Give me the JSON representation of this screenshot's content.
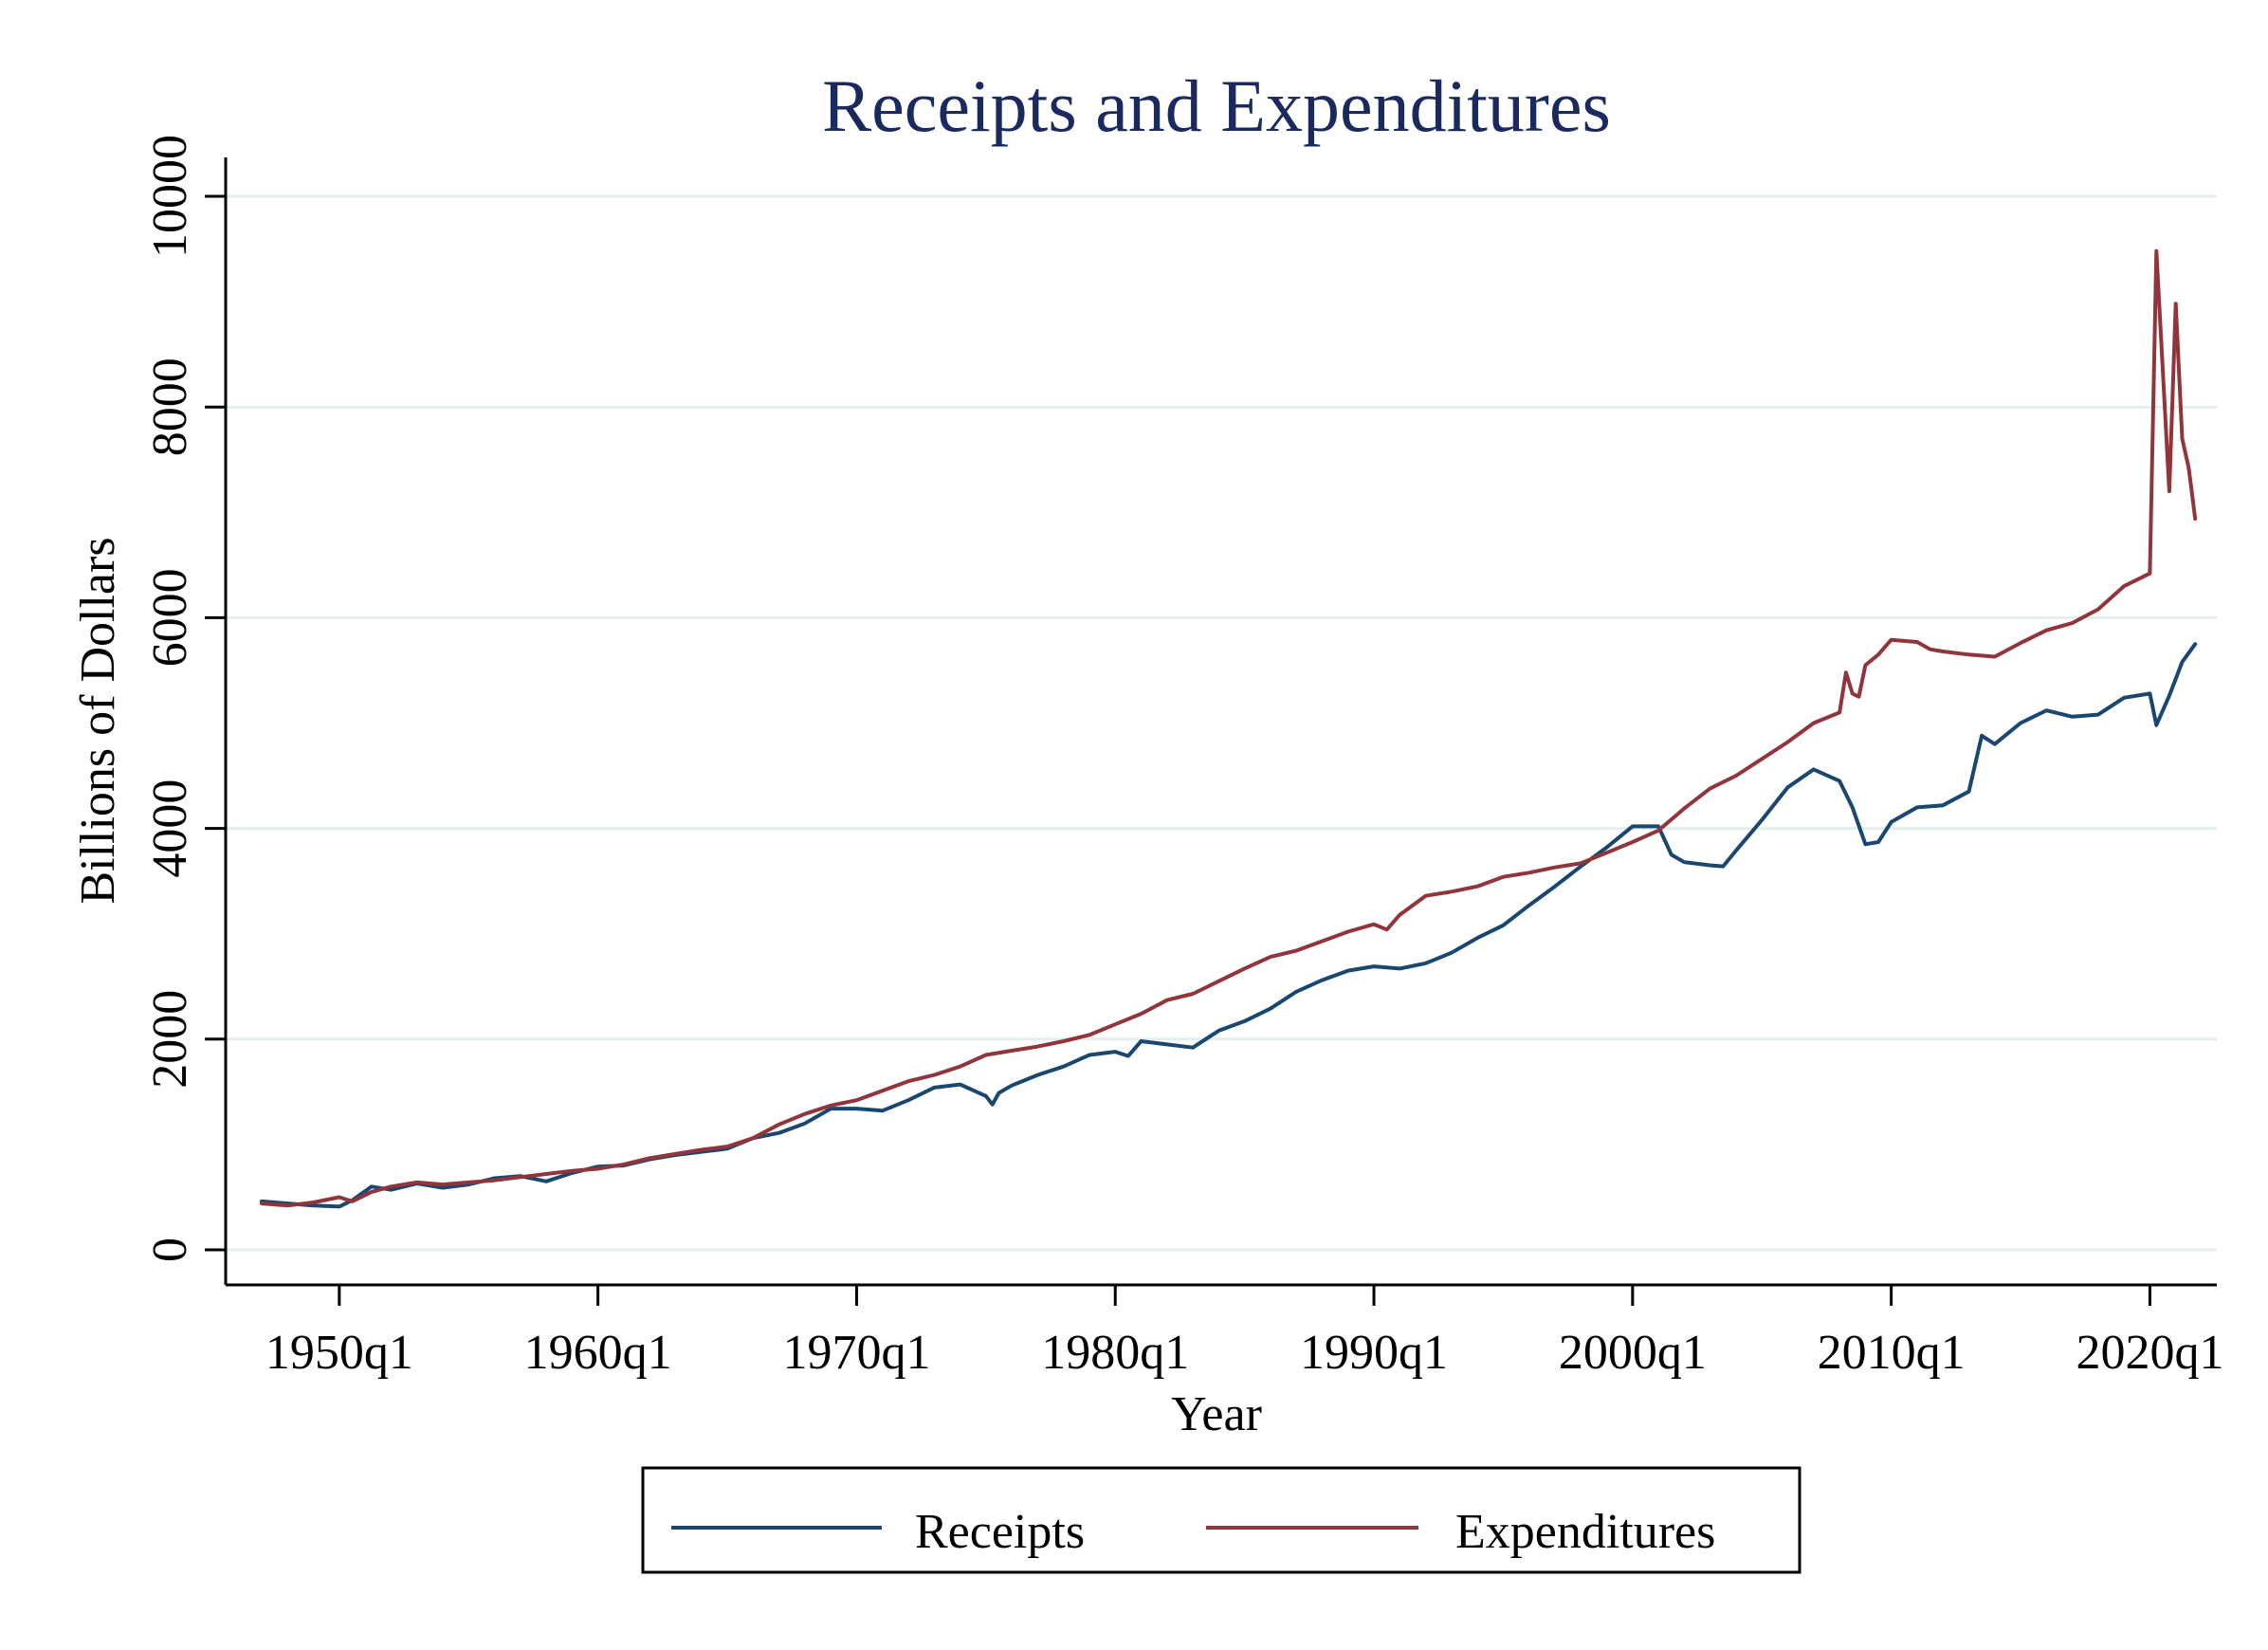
{
  "chart_data": {
    "type": "line",
    "title": "Receipts and Expenditures",
    "xlabel": "Year",
    "ylabel": "Billions of Dollars",
    "x_start_quarter": "1947q1",
    "x_ticks": [
      "1950q1",
      "1960q1",
      "1970q1",
      "1980q1",
      "1990q1",
      "2000q1",
      "2010q1",
      "2020q1"
    ],
    "y_ticks": [
      0,
      2000,
      4000,
      6000,
      8000,
      10000
    ],
    "ylim": [
      0,
      10000
    ],
    "grid": "horizontal",
    "legend": "bottom",
    "series": [
      {
        "name": "Receipts",
        "color": "#1a476f",
        "points": [
          [
            "1947q1",
            460
          ],
          [
            "1948q1",
            440
          ],
          [
            "1949q1",
            420
          ],
          [
            "1950q1",
            410
          ],
          [
            "1950q3",
            470
          ],
          [
            "1951q2",
            600
          ],
          [
            "1952q1",
            570
          ],
          [
            "1953q1",
            630
          ],
          [
            "1954q1",
            590
          ],
          [
            "1955q1",
            620
          ],
          [
            "1956q1",
            680
          ],
          [
            "1957q1",
            700
          ],
          [
            "1958q1",
            650
          ],
          [
            "1959q1",
            730
          ],
          [
            "1960q1",
            790
          ],
          [
            "1961q1",
            800
          ],
          [
            "1962q1",
            860
          ],
          [
            "1963q1",
            900
          ],
          [
            "1964q1",
            930
          ],
          [
            "1965q1",
            960
          ],
          [
            "1966q1",
            1060
          ],
          [
            "1967q1",
            1110
          ],
          [
            "1968q1",
            1200
          ],
          [
            "1969q1",
            1340
          ],
          [
            "1970q1",
            1340
          ],
          [
            "1971q1",
            1320
          ],
          [
            "1972q1",
            1420
          ],
          [
            "1973q1",
            1540
          ],
          [
            "1974q1",
            1570
          ],
          [
            "1975q1",
            1460
          ],
          [
            "1975q2",
            1380
          ],
          [
            "1975q3",
            1490
          ],
          [
            "1976q1",
            1560
          ],
          [
            "1977q1",
            1660
          ],
          [
            "1978q1",
            1740
          ],
          [
            "1979q1",
            1850
          ],
          [
            "1980q1",
            1880
          ],
          [
            "1980q3",
            1840
          ],
          [
            "1981q1",
            1980
          ],
          [
            "1982q1",
            1950
          ],
          [
            "1983q1",
            1920
          ],
          [
            "1984q1",
            2080
          ],
          [
            "1985q1",
            2170
          ],
          [
            "1986q1",
            2290
          ],
          [
            "1987q1",
            2450
          ],
          [
            "1988q1",
            2560
          ],
          [
            "1989q1",
            2650
          ],
          [
            "1990q1",
            2690
          ],
          [
            "1991q1",
            2670
          ],
          [
            "1992q1",
            2720
          ],
          [
            "1993q1",
            2820
          ],
          [
            "1994q1",
            2960
          ],
          [
            "1995q1",
            3080
          ],
          [
            "1996q1",
            3270
          ],
          [
            "1997q1",
            3450
          ],
          [
            "1998q1",
            3640
          ],
          [
            "1999q1",
            3820
          ],
          [
            "2000q1",
            4020
          ],
          [
            "2001q1",
            4020
          ],
          [
            "2001q3",
            3750
          ],
          [
            "2002q1",
            3680
          ],
          [
            "2003q1",
            3650
          ],
          [
            "2003q3",
            3640
          ],
          [
            "2004q1",
            3790
          ],
          [
            "2005q1",
            4080
          ],
          [
            "2006q1",
            4390
          ],
          [
            "2007q1",
            4560
          ],
          [
            "2008q1",
            4450
          ],
          [
            "2008q3",
            4200
          ],
          [
            "2009q1",
            3850
          ],
          [
            "2009q3",
            3870
          ],
          [
            "2010q1",
            4060
          ],
          [
            "2011q1",
            4200
          ],
          [
            "2012q1",
            4220
          ],
          [
            "2013q1",
            4350
          ],
          [
            "2013q3",
            4880
          ],
          [
            "2014q1",
            4800
          ],
          [
            "2015q1",
            5000
          ],
          [
            "2016q1",
            5120
          ],
          [
            "2017q1",
            5060
          ],
          [
            "2018q1",
            5080
          ],
          [
            "2019q1",
            5240
          ],
          [
            "2020q1",
            5280
          ],
          [
            "2020q2",
            4980
          ],
          [
            "2020q4",
            5260
          ],
          [
            "2021q2",
            5580
          ],
          [
            "2021q4",
            5750
          ]
        ]
      },
      {
        "name": "Expenditures",
        "color": "#90353b",
        "points": [
          [
            "1947q1",
            440
          ],
          [
            "1948q1",
            420
          ],
          [
            "1949q1",
            450
          ],
          [
            "1950q1",
            500
          ],
          [
            "1950q3",
            460
          ],
          [
            "1951q2",
            550
          ],
          [
            "1952q1",
            600
          ],
          [
            "1953q1",
            640
          ],
          [
            "1954q1",
            620
          ],
          [
            "1955q1",
            640
          ],
          [
            "1956q1",
            660
          ],
          [
            "1957q1",
            690
          ],
          [
            "1958q1",
            720
          ],
          [
            "1959q1",
            750
          ],
          [
            "1960q1",
            770
          ],
          [
            "1961q1",
            810
          ],
          [
            "1962q1",
            870
          ],
          [
            "1963q1",
            910
          ],
          [
            "1964q1",
            950
          ],
          [
            "1965q1",
            980
          ],
          [
            "1966q1",
            1060
          ],
          [
            "1967q1",
            1190
          ],
          [
            "1968q1",
            1290
          ],
          [
            "1969q1",
            1370
          ],
          [
            "1970q1",
            1420
          ],
          [
            "1971q1",
            1510
          ],
          [
            "1972q1",
            1600
          ],
          [
            "1973q1",
            1660
          ],
          [
            "1974q1",
            1740
          ],
          [
            "1975q1",
            1850
          ],
          [
            "1976q1",
            1890
          ],
          [
            "1977q1",
            1930
          ],
          [
            "1978q1",
            1980
          ],
          [
            "1979q1",
            2040
          ],
          [
            "1980q1",
            2140
          ],
          [
            "1981q1",
            2240
          ],
          [
            "1982q1",
            2370
          ],
          [
            "1983q1",
            2430
          ],
          [
            "1984q1",
            2550
          ],
          [
            "1985q1",
            2670
          ],
          [
            "1986q1",
            2780
          ],
          [
            "1987q1",
            2840
          ],
          [
            "1988q1",
            2930
          ],
          [
            "1989q1",
            3020
          ],
          [
            "1990q1",
            3090
          ],
          [
            "1990q3",
            3040
          ],
          [
            "1991q1",
            3180
          ],
          [
            "1992q1",
            3360
          ],
          [
            "1993q1",
            3400
          ],
          [
            "1994q1",
            3450
          ],
          [
            "1995q1",
            3540
          ],
          [
            "1996q1",
            3580
          ],
          [
            "1997q1",
            3630
          ],
          [
            "1998q1",
            3670
          ],
          [
            "1999q1",
            3770
          ],
          [
            "2000q1",
            3870
          ],
          [
            "2001q1",
            3980
          ],
          [
            "2002q1",
            4190
          ],
          [
            "2003q1",
            4380
          ],
          [
            "2004q1",
            4500
          ],
          [
            "2005q1",
            4660
          ],
          [
            "2006q1",
            4820
          ],
          [
            "2007q1",
            5000
          ],
          [
            "2008q1",
            5100
          ],
          [
            "2008q2",
            5480
          ],
          [
            "2008q3",
            5280
          ],
          [
            "2008q4",
            5250
          ],
          [
            "2009q1",
            5550
          ],
          [
            "2009q3",
            5650
          ],
          [
            "2010q1",
            5790
          ],
          [
            "2011q1",
            5770
          ],
          [
            "2011q3",
            5700
          ],
          [
            "2012q1",
            5680
          ],
          [
            "2013q1",
            5650
          ],
          [
            "2014q1",
            5630
          ],
          [
            "2015q1",
            5760
          ],
          [
            "2016q1",
            5880
          ],
          [
            "2017q1",
            5950
          ],
          [
            "2018q1",
            6080
          ],
          [
            "2019q1",
            6300
          ],
          [
            "2020q1",
            6420
          ],
          [
            "2020q2",
            9480
          ],
          [
            "2020q4",
            7200
          ],
          [
            "2021q1",
            8980
          ],
          [
            "2021q2",
            7700
          ],
          [
            "2021q3",
            7420
          ],
          [
            "2021q4",
            6940
          ]
        ]
      }
    ]
  }
}
